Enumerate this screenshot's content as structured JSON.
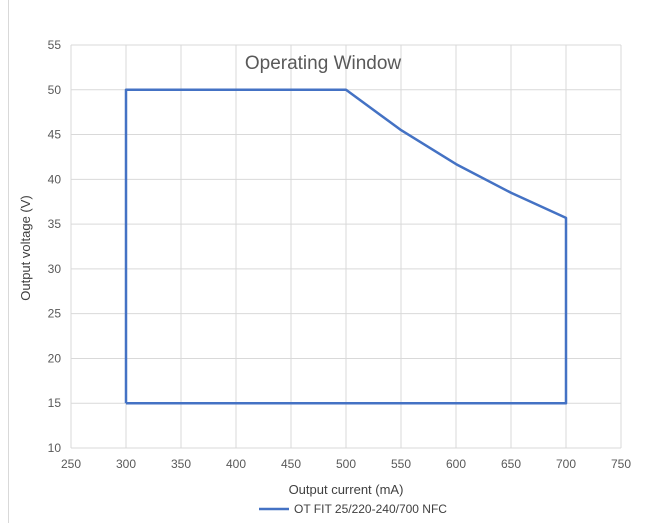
{
  "chart_data": {
    "type": "line",
    "title": "Operating Window",
    "xlabel": "Output current (mA)",
    "ylabel": "Output voltage (V)",
    "xlim": [
      250,
      750
    ],
    "ylim": [
      10,
      55
    ],
    "xticks": [
      250,
      300,
      350,
      400,
      450,
      500,
      550,
      600,
      650,
      700,
      750
    ],
    "yticks": [
      10,
      15,
      20,
      25,
      30,
      35,
      40,
      45,
      50,
      55
    ],
    "grid": true,
    "legend_position": "bottom",
    "series": [
      {
        "name": "OT FIT 25/220-240/700 NFC",
        "color": "#4472c4",
        "x": [
          300,
          300,
          500,
          550,
          600,
          650,
          700,
          700,
          300
        ],
        "y": [
          15,
          50,
          50,
          45.5,
          41.7,
          38.5,
          35.7,
          15,
          15
        ]
      }
    ]
  }
}
